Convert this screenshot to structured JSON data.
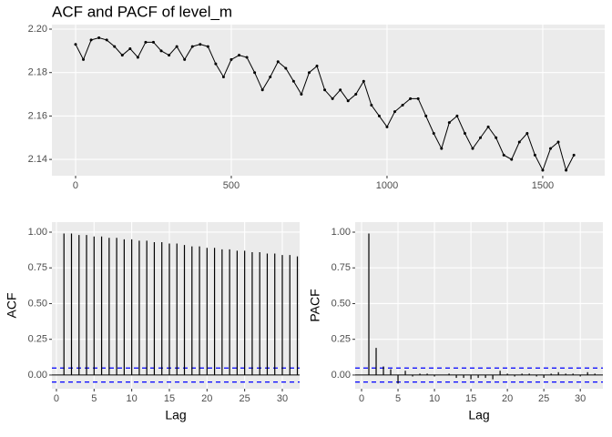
{
  "chart_data": [
    {
      "type": "line",
      "title": "ACF and PACF of level_m",
      "color": "#000000",
      "markers": true,
      "x": [
        0,
        25,
        50,
        75,
        100,
        125,
        150,
        175,
        200,
        225,
        250,
        275,
        300,
        325,
        350,
        375,
        400,
        425,
        450,
        475,
        500,
        525,
        550,
        575,
        600,
        625,
        650,
        675,
        700,
        725,
        750,
        775,
        800,
        825,
        850,
        875,
        900,
        925,
        950,
        975,
        1000,
        1025,
        1050,
        1075,
        1100,
        1125,
        1150,
        1175,
        1200,
        1225,
        1250,
        1275,
        1300,
        1325,
        1350,
        1375,
        1400,
        1425,
        1450,
        1475,
        1500,
        1525,
        1550,
        1575,
        1600
      ],
      "values": [
        2.193,
        2.186,
        2.195,
        2.196,
        2.195,
        2.192,
        2.188,
        2.191,
        2.187,
        2.194,
        2.194,
        2.19,
        2.188,
        2.192,
        2.186,
        2.192,
        2.193,
        2.192,
        2.184,
        2.178,
        2.186,
        2.188,
        2.187,
        2.18,
        2.172,
        2.178,
        2.185,
        2.182,
        2.176,
        2.17,
        2.18,
        2.183,
        2.172,
        2.168,
        2.172,
        2.167,
        2.17,
        2.176,
        2.165,
        2.16,
        2.155,
        2.162,
        2.165,
        2.168,
        2.168,
        2.16,
        2.152,
        2.145,
        2.157,
        2.16,
        2.152,
        2.145,
        2.15,
        2.155,
        2.15,
        2.142,
        2.14,
        2.148,
        2.152,
        2.142,
        2.135,
        2.145,
        2.148,
        2.135,
        2.142
      ],
      "xlim": [
        -76,
        1699
      ],
      "ylim": [
        2.1325,
        2.2021
      ],
      "xticks": [
        0,
        500,
        1000,
        1500
      ],
      "yticks": [
        2.14,
        2.16,
        2.18,
        {
          "value": 2.2,
          "label": "2.20"
        }
      ],
      "grid": true
    },
    {
      "type": "bar",
      "ylabel": "ACF",
      "xlabel": "Lag",
      "color": "#000000",
      "ci": 0.049,
      "ci_color": "#0000ff",
      "x": [
        1,
        2,
        3,
        4,
        5,
        6,
        7,
        8,
        9,
        10,
        11,
        12,
        13,
        14,
        15,
        16,
        17,
        18,
        19,
        20,
        21,
        22,
        23,
        24,
        25,
        26,
        27,
        28,
        29,
        30,
        31,
        32
      ],
      "values": [
        0.99,
        0.99,
        0.98,
        0.98,
        0.97,
        0.97,
        0.96,
        0.96,
        0.95,
        0.95,
        0.94,
        0.94,
        0.93,
        0.93,
        0.92,
        0.92,
        0.91,
        0.9,
        0.9,
        0.89,
        0.89,
        0.88,
        0.88,
        0.87,
        0.87,
        0.86,
        0.86,
        0.85,
        0.85,
        0.84,
        0.84,
        0.83
      ],
      "xlim": [
        -0.6,
        32.3
      ],
      "ylim": [
        -0.096,
        1.07
      ],
      "xticks": [
        0,
        5,
        10,
        15,
        20,
        25,
        30
      ],
      "yticks": [
        {
          "value": 0,
          "label": "0.00"
        },
        0.25,
        {
          "value": 0.5,
          "label": "0.50"
        },
        0.75,
        {
          "value": 1,
          "label": "1.00"
        }
      ],
      "grid": true
    },
    {
      "type": "bar",
      "ylabel": "PACF",
      "xlabel": "Lag",
      "color": "#000000",
      "ci": 0.049,
      "ci_color": "#0000ff",
      "x": [
        1,
        2,
        3,
        4,
        5,
        6,
        7,
        8,
        9,
        10,
        11,
        12,
        13,
        14,
        15,
        16,
        17,
        18,
        19,
        20,
        21,
        22,
        23,
        24,
        25,
        26,
        27,
        28,
        29,
        30,
        31,
        32
      ],
      "values": [
        0.99,
        0.19,
        0.06,
        0.04,
        -0.06,
        0.03,
        -0.01,
        0.01,
        0.01,
        -0.01,
        0.0,
        0.01,
        -0.02,
        -0.02,
        -0.03,
        -0.02,
        -0.02,
        -0.03,
        0.03,
        0.01,
        -0.01,
        0.01,
        0.01,
        -0.01,
        -0.02,
        0.01,
        0.02,
        0.01,
        0.01,
        -0.01,
        0.02,
        0.01
      ],
      "xlim": [
        -0.875,
        33.1
      ],
      "ylim": [
        -0.096,
        1.07
      ],
      "xticks": [
        0,
        5,
        10,
        15,
        20,
        25,
        30
      ],
      "yticks": [
        {
          "value": 0,
          "label": "0.00"
        },
        0.25,
        {
          "value": 0.5,
          "label": "0.50"
        },
        0.75,
        {
          "value": 1,
          "label": "1.00"
        }
      ],
      "grid": true
    }
  ]
}
